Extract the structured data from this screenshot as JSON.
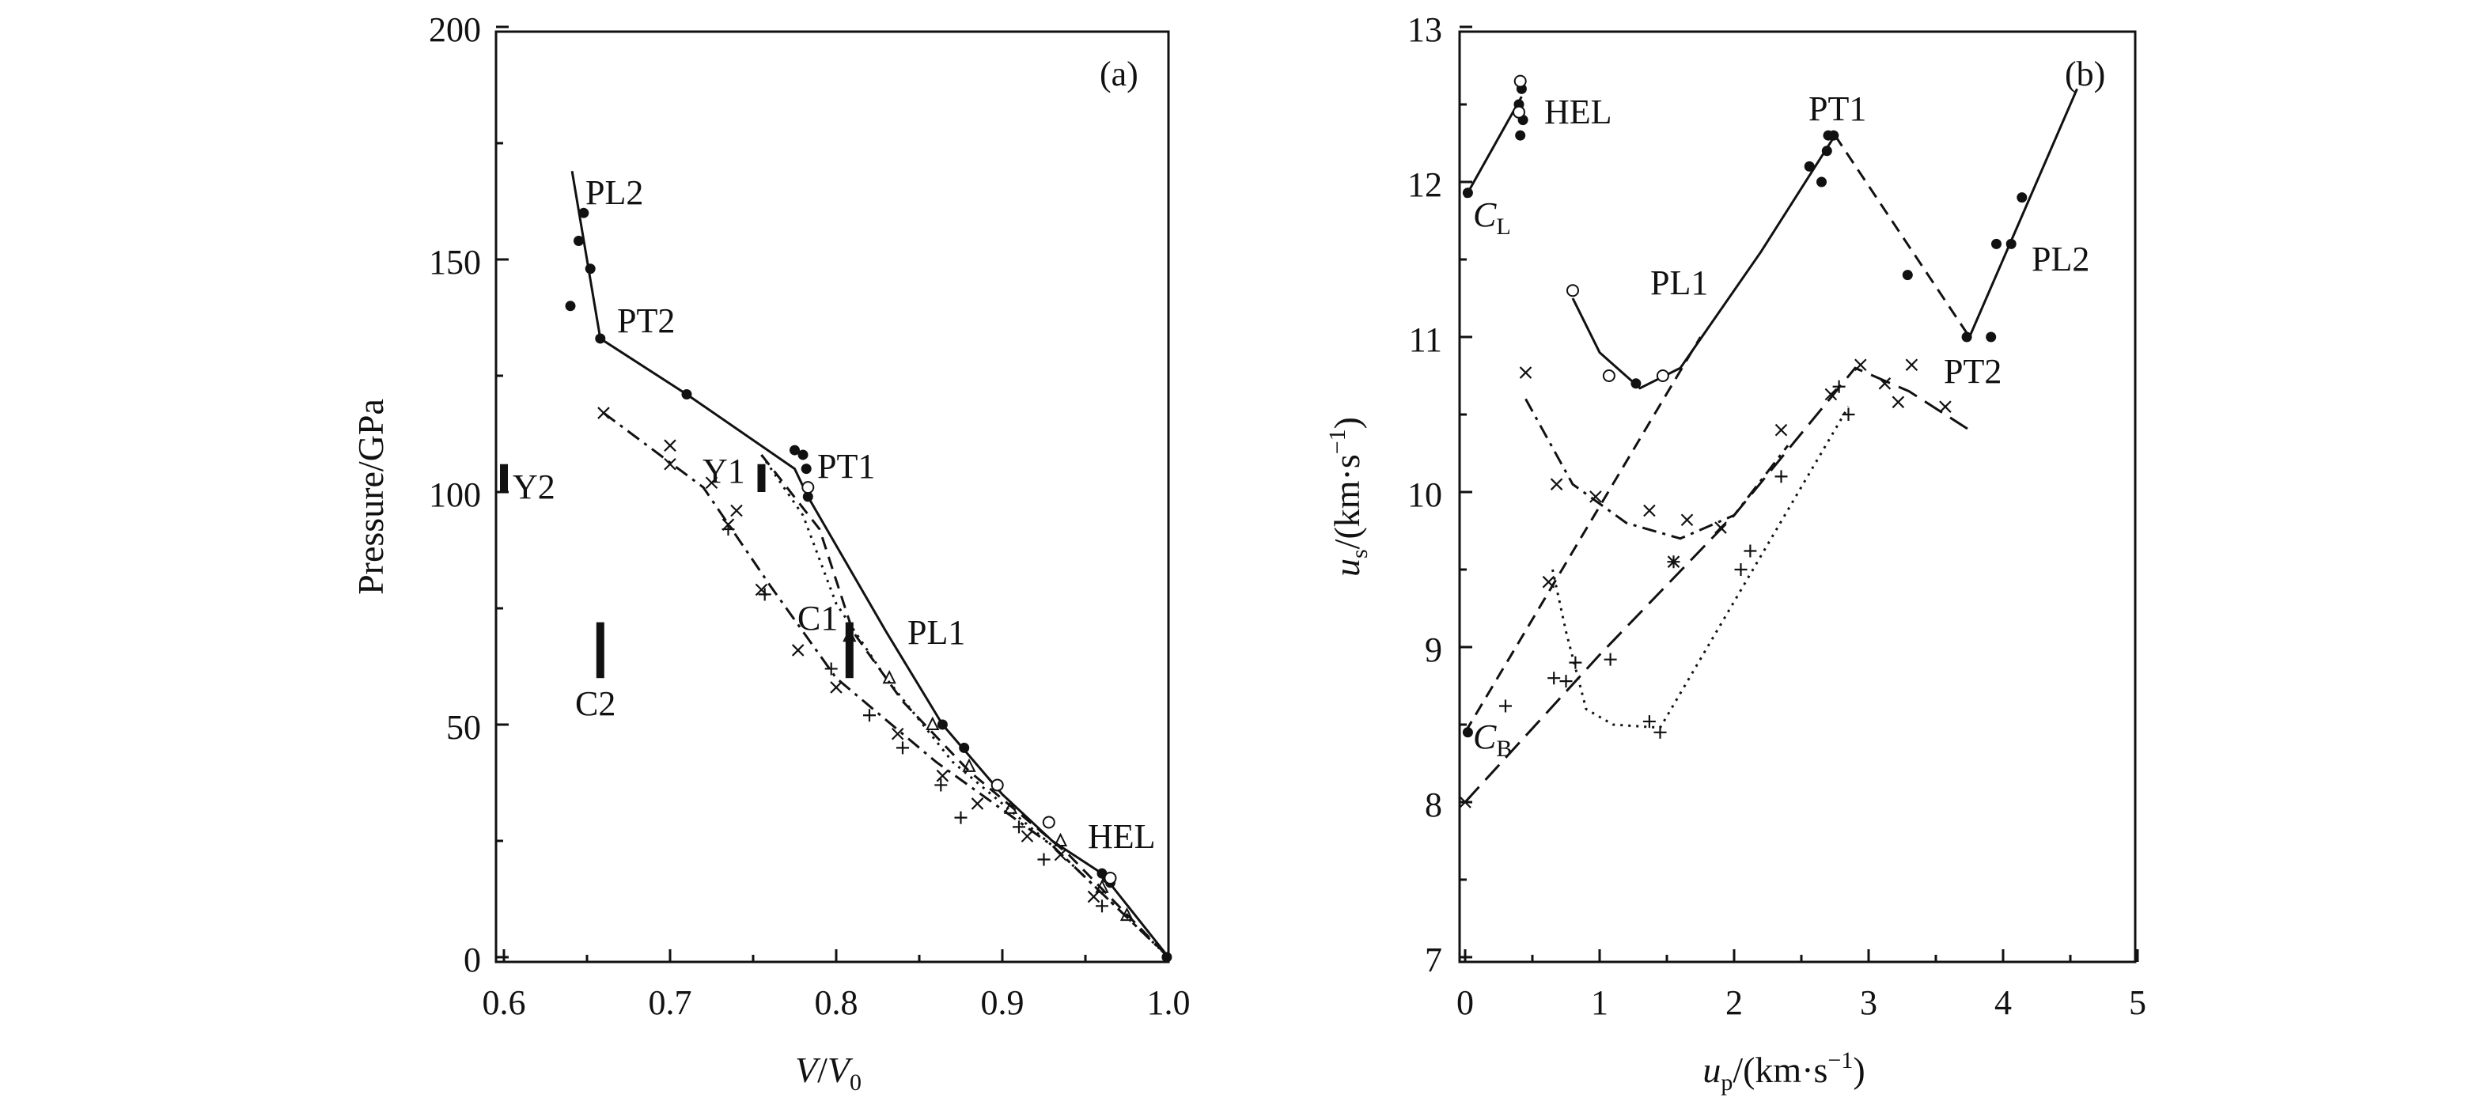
{
  "chart_data": [
    {
      "type": "line",
      "panel_label": "(a)",
      "xlabel_main": "V",
      "xlabel_sep": "/",
      "xlabel_sub": "V",
      "xlabel_sub_index": "0",
      "ylabel": "Pressure/GPa",
      "xlim": [
        0.6,
        1.0
      ],
      "ylim": [
        0,
        200
      ],
      "xticks": [
        "0.6",
        "0.7",
        "0.8",
        "0.9",
        "1.0"
      ],
      "yticks": [
        "0",
        "50",
        "100",
        "150",
        "200"
      ],
      "annotations": [
        "PL2",
        "PT2",
        "PT1",
        "PL1",
        "HEL",
        "Y1",
        "Y2",
        "C1",
        "C2"
      ],
      "series": [
        {
          "style": "solid",
          "x": [
            0.641,
            0.658,
            0.71,
            0.775,
            0.783,
            0.83,
            0.864,
            0.9,
            0.93,
            0.96,
            1.0
          ],
          "y": [
            169,
            133,
            121,
            105,
            99,
            70,
            50,
            35,
            25,
            18,
            0
          ]
        },
        {
          "style": "dash-dot",
          "x": [
            0.66,
            0.72,
            0.76,
            0.8,
            0.86,
            0.93,
            1.0
          ],
          "y": [
            117,
            101,
            80,
            60,
            42,
            24,
            0
          ]
        },
        {
          "style": "dotted",
          "x": [
            0.755,
            0.78,
            0.8,
            0.83,
            0.87,
            0.93,
            1.0
          ],
          "y": [
            108,
            95,
            76,
            60,
            42,
            24,
            0
          ]
        },
        {
          "style": "dashed",
          "x": [
            0.755,
            0.79,
            0.81,
            0.84,
            0.88,
            0.94,
            1.0
          ],
          "y": [
            108,
            92,
            70,
            55,
            40,
            22,
            0
          ]
        }
      ],
      "points": [
        {
          "marker": "dot",
          "x": [
            0.648,
            0.645,
            0.652,
            0.64,
            0.658,
            0.71,
            0.775,
            0.78,
            0.782,
            0.783,
            0.864,
            0.877,
            0.96,
            0.963,
            0.965,
            0.999
          ],
          "y": [
            160,
            154,
            148,
            140,
            133,
            121,
            109,
            108,
            105,
            99,
            50,
            45,
            18,
            17,
            16,
            0
          ]
        },
        {
          "marker": "circle",
          "x": [
            0.897,
            0.928,
            0.965,
            0.783
          ],
          "y": [
            37,
            29,
            17,
            101
          ]
        },
        {
          "marker": "cross",
          "x": [
            0.66,
            0.7,
            0.7,
            0.725,
            0.735,
            0.74,
            0.755,
            0.777,
            0.8,
            0.837,
            0.864,
            0.885,
            0.915,
            0.935,
            0.955
          ],
          "y": [
            117,
            110,
            106,
            102,
            93,
            96,
            79,
            66,
            58,
            48,
            39,
            33,
            26,
            22,
            13
          ]
        },
        {
          "marker": "plus",
          "x": [
            0.735,
            0.757,
            0.797,
            0.82,
            0.84,
            0.863,
            0.875,
            0.91,
            0.925,
            0.96
          ],
          "y": [
            92,
            78,
            62,
            52,
            45,
            37,
            30,
            28,
            21,
            11
          ]
        },
        {
          "marker": "triangle",
          "x": [
            0.808,
            0.832,
            0.858,
            0.88,
            0.905,
            0.935,
            0.96,
            0.975
          ],
          "y": [
            69,
            60,
            50,
            41,
            32,
            25,
            15,
            9
          ]
        }
      ],
      "markers": [
        {
          "label": "Y2",
          "x": 0.6,
          "y1": 100,
          "y2": 106
        },
        {
          "label": "Y1",
          "x": 0.755,
          "y1": 100,
          "y2": 106
        },
        {
          "label": "C1",
          "x": 0.808,
          "y1": 60,
          "y2": 72
        },
        {
          "label": "C2",
          "x": 0.658,
          "y1": 60,
          "y2": 72
        }
      ]
    },
    {
      "type": "line",
      "panel_label": "(b)",
      "xlabel_main": "u",
      "xlabel_sub": "p",
      "xlabel_units": "/(km·s",
      "xlabel_exp": "−1",
      "xlabel_close": ")",
      "ylabel_main": "u",
      "ylabel_sub": "s",
      "ylabel_units": "/(km·s",
      "ylabel_exp": "−1",
      "ylabel_close": ")",
      "xlim": [
        0,
        5
      ],
      "ylim": [
        7,
        13
      ],
      "xticks": [
        "0",
        "1",
        "2",
        "3",
        "4",
        "5"
      ],
      "yticks": [
        "7",
        "8",
        "9",
        "10",
        "11",
        "12",
        "13"
      ],
      "annotations": [
        "HEL",
        "PT1",
        "PL1",
        "PT2",
        "PL2"
      ],
      "cl_main": "C",
      "cl_sub": "L",
      "cb_main": "C",
      "cb_sub": "B",
      "series": [
        {
          "style": "solid",
          "x": [
            0,
            0.42
          ],
          "y": [
            11.9,
            12.55
          ]
        },
        {
          "style": "solid",
          "x": [
            0.8,
            1.0,
            1.3,
            1.6,
            2.2,
            2.75
          ],
          "y": [
            11.25,
            10.9,
            10.67,
            10.8,
            11.55,
            12.3
          ]
        },
        {
          "style": "dashed",
          "x": [
            2.75,
            3.75
          ],
          "y": [
            12.3,
            11.0
          ]
        },
        {
          "style": "solid",
          "x": [
            3.75,
            4.55
          ],
          "y": [
            11.0,
            12.6
          ]
        },
        {
          "style": "dashed",
          "x": [
            0,
            1.75
          ],
          "y": [
            8.45,
            11.0
          ]
        },
        {
          "style": "dash-dot",
          "x": [
            0.45,
            0.8,
            1.2,
            1.6,
            2.0,
            2.4
          ],
          "y": [
            10.6,
            10.05,
            9.8,
            9.7,
            9.85,
            10.3
          ]
        },
        {
          "style": "long-dash",
          "x": [
            0,
            1.0,
            2.0,
            2.9,
            3.3,
            3.75
          ],
          "y": [
            8.0,
            8.95,
            9.85,
            10.8,
            10.65,
            10.4
          ]
        },
        {
          "style": "dotted",
          "x": [
            0.65,
            0.75,
            0.9,
            1.1,
            1.45,
            2.85
          ],
          "y": [
            9.5,
            9.1,
            8.6,
            8.5,
            8.48,
            10.55
          ]
        }
      ],
      "points": [
        {
          "marker": "dot",
          "x": [
            0.02,
            0.4,
            0.42,
            0.43,
            0.41,
            1.27,
            2.56,
            2.65,
            2.69,
            2.7,
            2.74,
            3.29,
            3.73,
            3.91,
            3.95,
            4.06,
            4.14,
            0.02
          ],
          "y": [
            11.93,
            12.5,
            12.6,
            12.4,
            12.3,
            10.7,
            12.1,
            12.0,
            12.2,
            12.3,
            12.3,
            11.4,
            11.0,
            11.0,
            11.6,
            11.6,
            11.9,
            8.45
          ]
        },
        {
          "marker": "circle",
          "x": [
            0.41,
            0.8,
            1.07,
            1.47,
            0.4
          ],
          "y": [
            12.65,
            11.3,
            10.75,
            10.75,
            12.45
          ]
        },
        {
          "marker": "cross",
          "x": [
            0.45,
            0.68,
            0.97,
            1.37,
            1.65,
            2.35,
            2.72,
            2.94,
            3.12,
            3.22,
            3.32,
            3.57,
            0.0,
            0.62,
            1.55,
            1.9
          ],
          "y": [
            10.77,
            10.05,
            9.97,
            9.88,
            9.82,
            10.4,
            10.63,
            10.82,
            10.7,
            10.58,
            10.82,
            10.55,
            8.0,
            9.42,
            9.55,
            9.77
          ]
        },
        {
          "marker": "plus",
          "x": [
            0.3,
            0.66,
            0.75,
            0.82,
            1.08,
            1.45,
            1.55,
            2.05,
            2.12,
            2.35,
            2.78,
            2.85,
            1.37
          ],
          "y": [
            8.62,
            8.8,
            8.78,
            8.9,
            8.92,
            8.45,
            9.55,
            9.5,
            9.62,
            10.1,
            10.68,
            10.5,
            8.52
          ]
        }
      ]
    }
  ]
}
